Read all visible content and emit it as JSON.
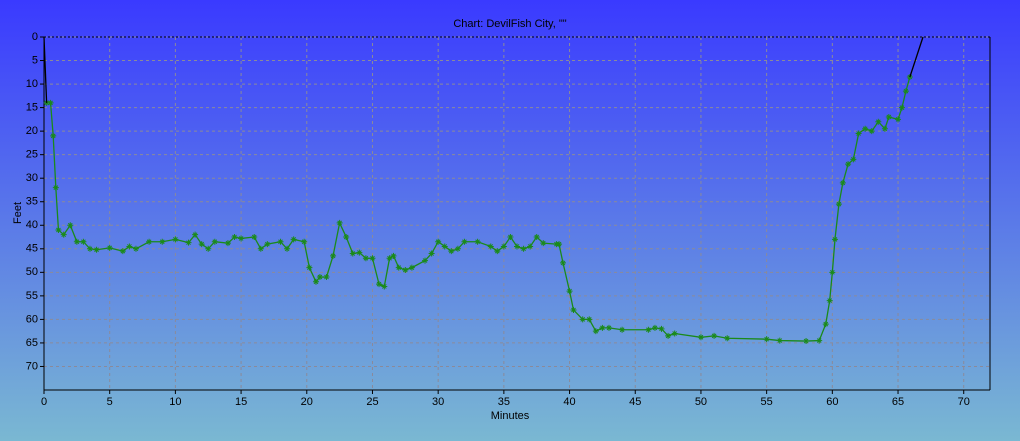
{
  "chart_data": {
    "type": "line",
    "title": "Chart: DevilFish City, \"\"",
    "x_label": "Minutes",
    "y_label": "Feet",
    "xlim": [
      0,
      72
    ],
    "ylim": [
      0,
      75
    ],
    "y_inverted": true,
    "grid": true,
    "xticks": [
      0,
      5,
      10,
      15,
      20,
      25,
      30,
      35,
      40,
      45,
      50,
      55,
      60,
      65,
      70
    ],
    "yticks": [
      0,
      5,
      10,
      15,
      20,
      25,
      30,
      35,
      40,
      45,
      50,
      55,
      60,
      65,
      70
    ],
    "series": [
      {
        "color": "#1a8a1a",
        "markers": true,
        "x": [
          0.2,
          0.5,
          0.7,
          0.9,
          1.1,
          1.5,
          2,
          2.5,
          3,
          3.5,
          4,
          5,
          6,
          6.5,
          7,
          8,
          9,
          10,
          11,
          11.5,
          12,
          12.5,
          13,
          14,
          14.5,
          15,
          16,
          16.5,
          17,
          18,
          18.5,
          19,
          19.8,
          20.2,
          20.7,
          21,
          21.5,
          22,
          22.5,
          23,
          23.5,
          24,
          24.5,
          25,
          25.5,
          25.9,
          26.3,
          26.6,
          27,
          27.5,
          28,
          29,
          29.5,
          30,
          30.5,
          31,
          31.5,
          32,
          33,
          34,
          34.5,
          35,
          35.5,
          36,
          36.5,
          37,
          37.5,
          38,
          39,
          39.2,
          39.5,
          40,
          40.3,
          41,
          41.5,
          42,
          42.5,
          43,
          44,
          46,
          46.5,
          47,
          47.5,
          48,
          50,
          51,
          52,
          55,
          56,
          58,
          59,
          59.5,
          59.8,
          60,
          60.2,
          60.5,
          60.8,
          61.2,
          61.6,
          62,
          62.5,
          63,
          63.5,
          64,
          64.3,
          65,
          65.3,
          65.6,
          65.9
        ],
        "values": [
          14,
          14,
          21,
          32,
          41,
          42,
          40,
          43.5,
          43.5,
          45,
          45.2,
          44.8,
          45.5,
          44.5,
          45,
          43.5,
          43.5,
          43,
          43.7,
          42,
          44,
          45,
          43.5,
          43.8,
          42.5,
          42.8,
          42.5,
          45,
          44,
          43.5,
          45,
          43,
          43.5,
          49,
          52,
          51,
          51,
          46.5,
          39.5,
          42.5,
          46,
          45.8,
          47,
          47,
          52.5,
          53,
          47,
          46.5,
          49,
          49.5,
          49,
          47.5,
          46,
          43.5,
          44.5,
          45.5,
          45,
          43.5,
          43.5,
          44.5,
          45.5,
          44.5,
          42.5,
          44.5,
          45,
          44.5,
          42.5,
          43.8,
          44,
          44,
          48,
          54,
          58,
          60,
          60,
          62.5,
          61.8,
          61.8,
          62.2,
          62.2,
          61.8,
          62,
          63.5,
          63,
          63.8,
          63.5,
          64,
          64.2,
          64.5,
          64.6,
          64.5,
          61,
          56,
          50,
          43,
          35.5,
          31,
          27,
          26,
          20.5,
          19.5,
          20,
          18,
          19.5,
          17,
          17.5,
          15,
          11.5,
          8.5
        ]
      },
      {
        "color": "#000000",
        "markers": false,
        "x": [
          0,
          0.2
        ],
        "values": [
          0,
          14
        ]
      },
      {
        "color": "#000000",
        "markers": false,
        "x": [
          65.9,
          66.9
        ],
        "values": [
          8.5,
          0
        ]
      }
    ]
  }
}
